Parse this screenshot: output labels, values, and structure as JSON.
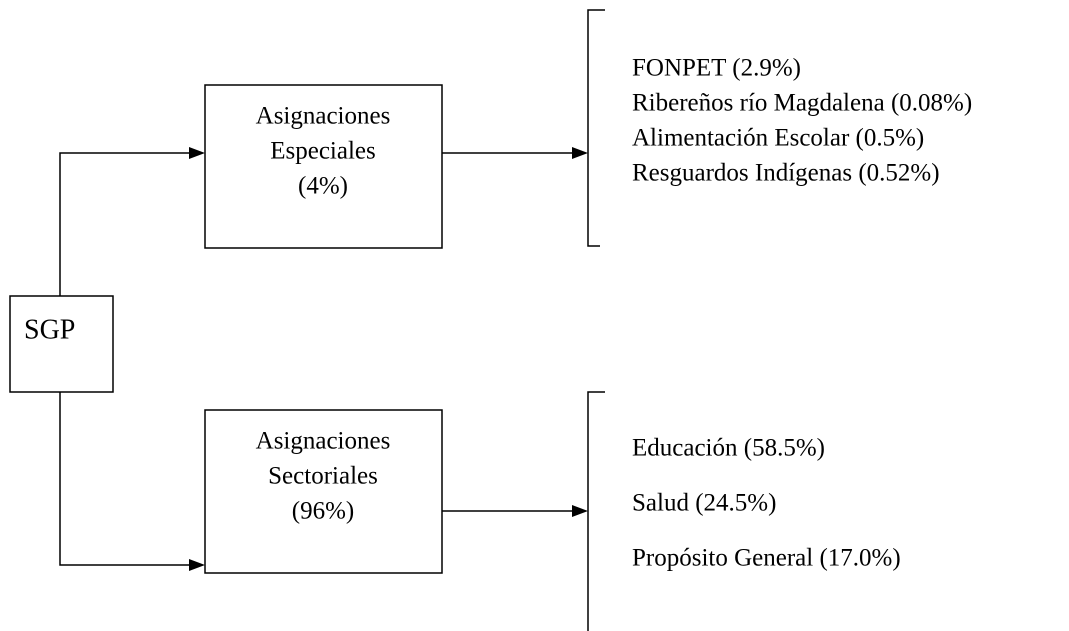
{
  "root": {
    "label": "SGP"
  },
  "branches": [
    {
      "label": [
        "Asignaciones",
        "Especiales",
        "(4%)"
      ],
      "items": [
        "FONPET (2.9%)",
        "Ribereños río Magdalena (0.08%)",
        "Alimentación Escolar (0.5%)",
        "Resguardos Indígenas (0.52%)"
      ]
    },
    {
      "label": [
        "Asignaciones",
        "Sectoriales",
        "(96%)"
      ],
      "items": [
        "Educación (58.5%)",
        "Salud (24.5%)",
        "Propósito General (17.0%)"
      ]
    }
  ]
}
